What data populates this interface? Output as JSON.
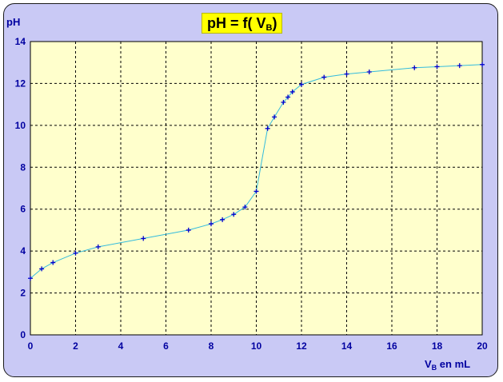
{
  "chart_data": {
    "type": "scatter",
    "title": {
      "main": "pH = f( V",
      "sub": "B",
      "end": ")"
    },
    "ylabel": "pH",
    "xlabel": {
      "main": "V",
      "sub": "B",
      "end": " en mL"
    },
    "xlim": [
      0,
      20
    ],
    "ylim": [
      0,
      14
    ],
    "xticks": [
      0,
      2,
      4,
      6,
      8,
      10,
      12,
      14,
      16,
      18,
      20
    ],
    "yticks": [
      0,
      2,
      4,
      6,
      8,
      10,
      12,
      14
    ],
    "grid": true,
    "legend": "none",
    "series": [
      {
        "x": [
          0,
          0.5,
          1,
          2,
          3,
          5,
          7,
          8,
          8.5,
          9,
          9.5,
          10,
          10.5,
          10.8,
          11.2,
          11.4,
          11.6,
          12,
          13,
          14,
          15,
          17,
          18,
          19,
          20
        ],
        "y": [
          2.7,
          3.15,
          3.45,
          3.9,
          4.2,
          4.6,
          5.0,
          5.3,
          5.5,
          5.75,
          6.1,
          6.85,
          9.85,
          10.4,
          11.1,
          11.35,
          11.6,
          11.95,
          12.3,
          12.45,
          12.55,
          12.75,
          12.8,
          12.85,
          12.9
        ]
      }
    ],
    "colors": {
      "plot_bg": "#ffffcc",
      "frame": "#c9c9f5",
      "marker": "#0000cc",
      "curve": "#33bbdd",
      "grid": "#000000",
      "text": "#0000a0",
      "title_bg": "#ffff00"
    }
  }
}
